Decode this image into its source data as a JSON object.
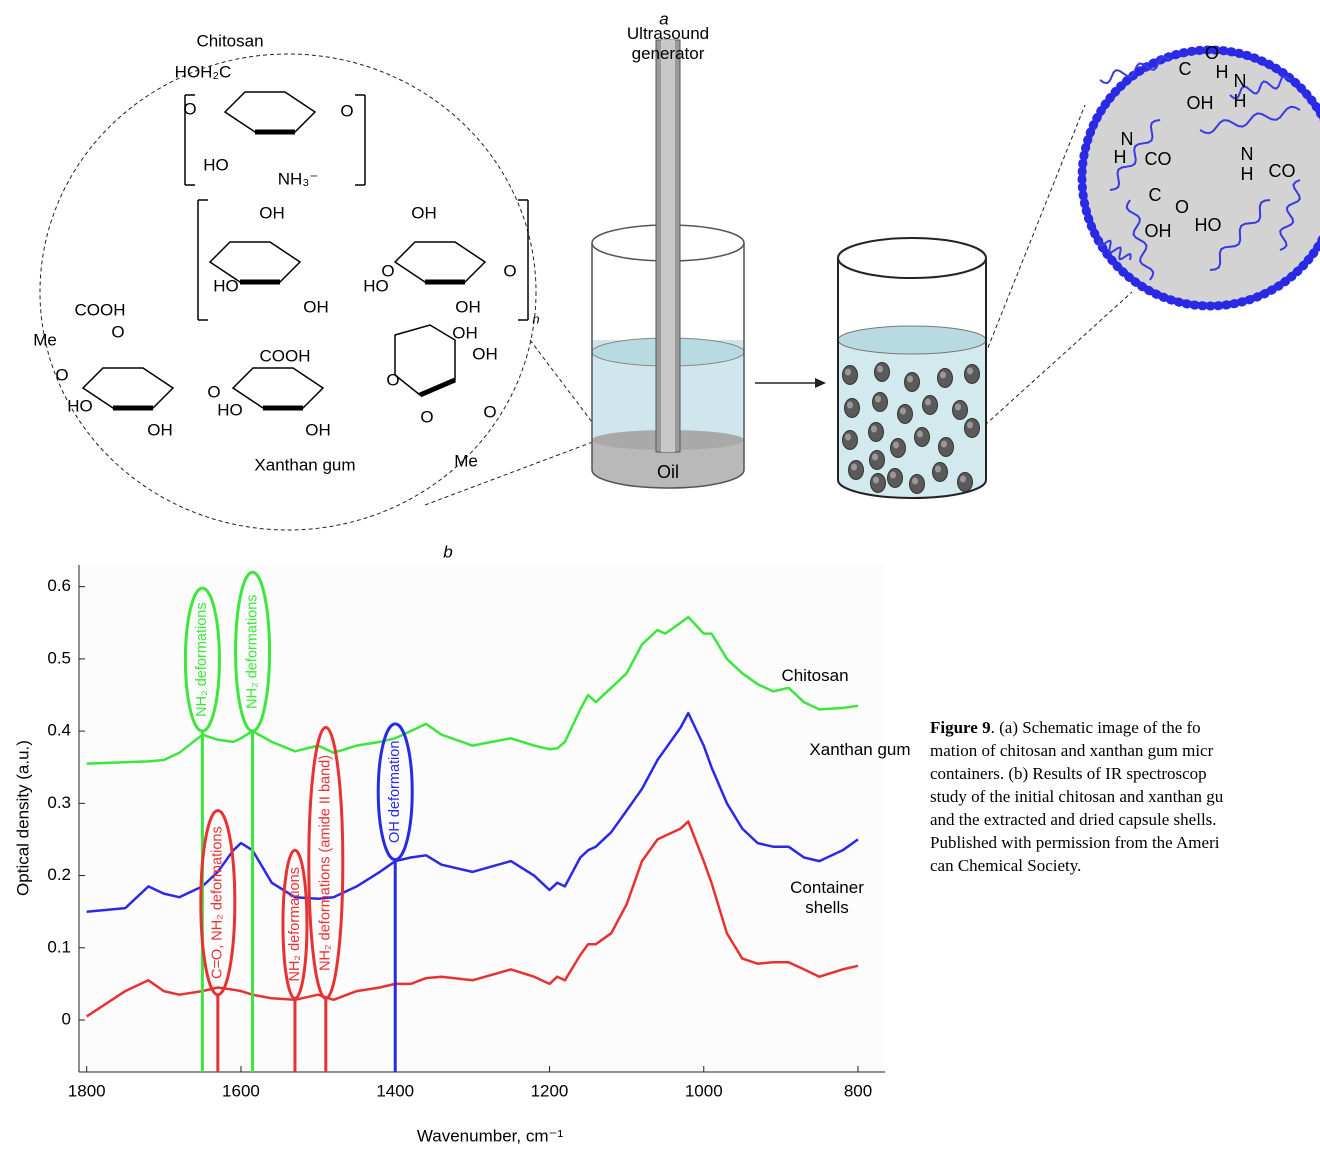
{
  "panel_a": {
    "label": "a",
    "ultrasound_generator": "Ultrasound generator",
    "oil": "Oil",
    "chitosan": "Chitosan",
    "xanthan_gum": "Xanthan gum",
    "chemical_labels": [
      "HOH₂C",
      "O",
      "O",
      "HO",
      "NH₃⁻",
      "OH",
      "HO",
      "OH",
      "OH",
      "HO",
      "OH",
      "O",
      "O",
      "n",
      "COOH",
      "O",
      "Me",
      "O",
      "O",
      "HO",
      "OH",
      "COOH",
      "HO",
      "OH",
      "O",
      "OH",
      "OH",
      "O",
      "O",
      "Me"
    ],
    "capsule_labels": [
      "C",
      "O",
      "OH",
      "H",
      "N",
      "H",
      "N",
      "H",
      "CO",
      "N",
      "H",
      "CO",
      "C",
      "O",
      "OH",
      "HO"
    ]
  },
  "chart_data": {
    "type": "line",
    "title": "b",
    "x_label": "Wavenumber, cm⁻¹",
    "y_label": "Optical density (a.u.)",
    "xlim": [
      1810,
      765
    ],
    "ylim": [
      -0.072,
      0.63
    ],
    "xticks": [
      1800,
      1600,
      1400,
      1200,
      1000,
      800
    ],
    "yticks": [
      0,
      0.1,
      0.2,
      0.3,
      0.4,
      0.5,
      0.6
    ],
    "x": [
      1800,
      1750,
      1720,
      1700,
      1680,
      1650,
      1630,
      1610,
      1600,
      1585,
      1560,
      1530,
      1500,
      1480,
      1450,
      1420,
      1400,
      1380,
      1360,
      1340,
      1300,
      1250,
      1220,
      1200,
      1190,
      1180,
      1160,
      1150,
      1140,
      1120,
      1100,
      1080,
      1060,
      1050,
      1030,
      1020,
      1000,
      990,
      970,
      950,
      930,
      910,
      890,
      870,
      850,
      820,
      800
    ],
    "series": [
      {
        "name": "Chitosan",
        "color": "#3ce63c",
        "values": [
          0.355,
          0.357,
          0.358,
          0.36,
          0.37,
          0.395,
          0.388,
          0.385,
          0.39,
          0.4,
          0.385,
          0.372,
          0.38,
          0.37,
          0.38,
          0.385,
          0.39,
          0.4,
          0.41,
          0.395,
          0.38,
          0.39,
          0.38,
          0.375,
          0.376,
          0.385,
          0.43,
          0.45,
          0.44,
          0.46,
          0.48,
          0.52,
          0.54,
          0.535,
          0.55,
          0.558,
          0.535,
          0.535,
          0.5,
          0.48,
          0.465,
          0.455,
          0.46,
          0.44,
          0.43,
          0.432,
          0.435
        ]
      },
      {
        "name": "Xanthan gum",
        "color": "#2a2ae6",
        "values": [
          0.15,
          0.155,
          0.185,
          0.175,
          0.17,
          0.185,
          0.205,
          0.235,
          0.245,
          0.235,
          0.19,
          0.17,
          0.168,
          0.17,
          0.185,
          0.205,
          0.22,
          0.225,
          0.228,
          0.215,
          0.205,
          0.22,
          0.2,
          0.18,
          0.19,
          0.185,
          0.225,
          0.235,
          0.24,
          0.26,
          0.29,
          0.32,
          0.36,
          0.375,
          0.405,
          0.425,
          0.38,
          0.35,
          0.3,
          0.265,
          0.245,
          0.24,
          0.24,
          0.225,
          0.22,
          0.235,
          0.25
        ]
      },
      {
        "name": "Container shells",
        "color": "#e63232",
        "values": [
          0.005,
          0.04,
          0.055,
          0.04,
          0.035,
          0.04,
          0.045,
          0.042,
          0.04,
          0.035,
          0.03,
          0.028,
          0.035,
          0.028,
          0.04,
          0.045,
          0.05,
          0.05,
          0.058,
          0.06,
          0.055,
          0.07,
          0.06,
          0.05,
          0.06,
          0.055,
          0.09,
          0.105,
          0.105,
          0.12,
          0.16,
          0.22,
          0.25,
          0.255,
          0.265,
          0.275,
          0.22,
          0.19,
          0.12,
          0.085,
          0.078,
          0.08,
          0.08,
          0.07,
          0.06,
          0.07,
          0.075
        ]
      }
    ],
    "annotations": [
      {
        "x": 1650,
        "label": "NH₂ deformations",
        "color": "#3ce63c"
      },
      {
        "x": 1585,
        "label": "NH₂ deformations",
        "color": "#3ce63c"
      },
      {
        "x": 1630,
        "label": "C=O, NH₂ deformations",
        "color": "#e63232"
      },
      {
        "x": 1530,
        "label": "NH₂ deformations",
        "color": "#e63232"
      },
      {
        "x": 1490,
        "label": "NH₂ deformations (amide II band)",
        "color": "#e63232"
      },
      {
        "x": 1400,
        "label": "OH deformation",
        "color": "#2a2ae6"
      }
    ]
  },
  "caption": {
    "label": "Figure 9",
    "lines": [
      ". (a) Schematic image of the fo",
      "mation of chitosan and xanthan gum micr",
      "containers. (b) Results of IR spectroscop",
      "study of the initial chitosan and xanthan gu",
      "and the extracted and dried capsule shells.",
      "Published with permission from the Ameri",
      "can Chemical Society."
    ]
  }
}
